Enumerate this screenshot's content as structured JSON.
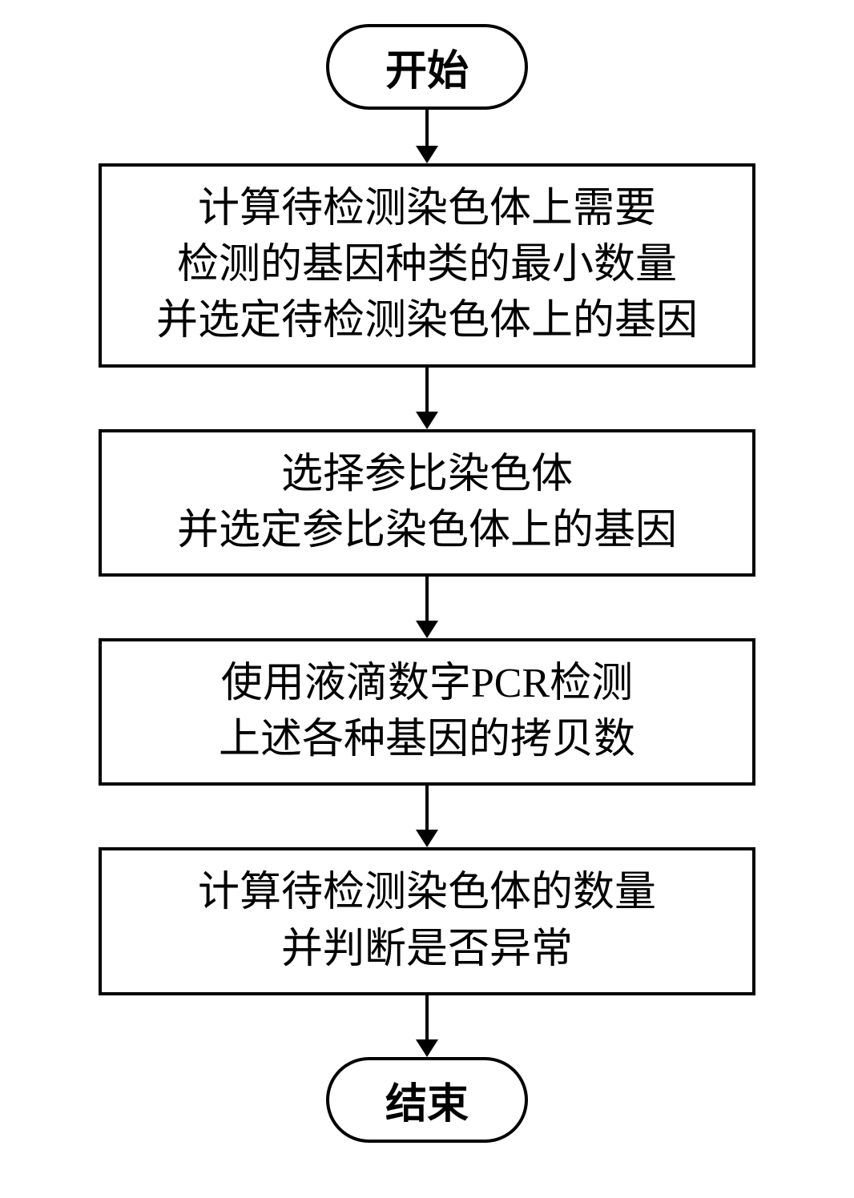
{
  "flowchart": {
    "type": "flowchart",
    "direction": "top-down",
    "background_color": "#ffffff",
    "border_color": "#000000",
    "border_width": 4,
    "text_color": "#000000",
    "font_size": 52,
    "font_family": "SimSun",
    "terminal_border_radius": 60,
    "process_width": 820,
    "arrow_color": "#000000",
    "arrow_line_width": 4,
    "arrow_head_size": 22,
    "nodes": [
      {
        "id": "start",
        "type": "terminal",
        "label": "开始"
      },
      {
        "id": "step1",
        "type": "process",
        "lines": [
          "计算待检测染色体上需要",
          "检测的基因种类的最小数量",
          "并选定待检测染色体上的基因"
        ]
      },
      {
        "id": "step2",
        "type": "process",
        "lines": [
          "选择参比染色体",
          "并选定参比染色体上的基因"
        ]
      },
      {
        "id": "step3",
        "type": "process",
        "lines": [
          "使用液滴数字PCR检测",
          "上述各种基因的拷贝数"
        ]
      },
      {
        "id": "step4",
        "type": "process",
        "lines": [
          "计算待检测染色体的数量",
          "并判断是否异常"
        ]
      },
      {
        "id": "end",
        "type": "terminal",
        "label": "结束"
      }
    ],
    "edges": [
      {
        "from": "start",
        "to": "step1",
        "length": 45
      },
      {
        "from": "step1",
        "to": "step2",
        "length": 55
      },
      {
        "from": "step2",
        "to": "step3",
        "length": 55
      },
      {
        "from": "step3",
        "to": "step4",
        "length": 55
      },
      {
        "from": "step4",
        "to": "end",
        "length": 55
      }
    ]
  }
}
